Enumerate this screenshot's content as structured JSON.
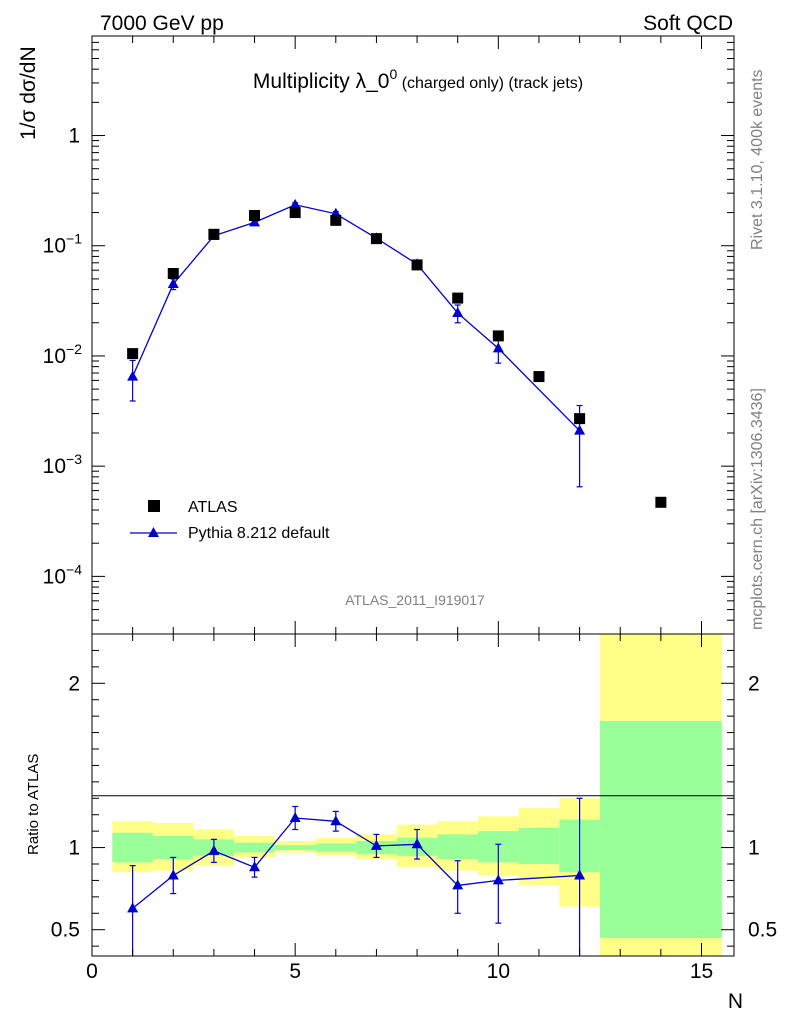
{
  "header": {
    "left": "7000 GeV pp",
    "right": "Soft QCD"
  },
  "side": {
    "rivet": "Rivet 3.1.10,  400k events",
    "site": "mcplots.cern.ch [arXiv:1306.3436]"
  },
  "analysis_id": "ATLAS_2011_I919017",
  "legend": {
    "data_label": "ATLAS",
    "mc_label": "Pythia 8.212 default"
  },
  "chart_data": [
    {
      "panel": "main",
      "type": "scatter",
      "title": "Multiplicity λ_0",
      "title_sup": "0",
      "title_suffix": " (charged only) (track jets)",
      "ylabel": "1/σ dσ/dN",
      "xlabel": "",
      "y_scale": "log",
      "xlim": [
        0,
        15.8
      ],
      "ylim": [
        3e-05,
        8
      ],
      "y_tick_labels": [
        {
          "value": 0.0001,
          "base": "10",
          "exp": "−4"
        },
        {
          "value": 0.001,
          "base": "10",
          "exp": "−3"
        },
        {
          "value": 0.01,
          "base": "10",
          "exp": "−2"
        },
        {
          "value": 0.1,
          "base": "10",
          "exp": "−1"
        },
        {
          "value": 1,
          "base": "1",
          "exp": ""
        }
      ],
      "legend_position": "lower-left",
      "series": [
        {
          "name": "ATLAS",
          "style": "black-squares",
          "color": "#000000",
          "x": [
            1,
            2,
            3,
            4,
            5,
            6,
            7,
            8,
            9,
            10,
            11,
            12,
            14
          ],
          "y": [
            0.0105,
            0.056,
            0.127,
            0.188,
            0.2,
            0.17,
            0.116,
            0.067,
            0.0335,
            0.0152,
            0.0065,
            0.0027,
            0.00047
          ]
        },
        {
          "name": "Pythia 8.212 default",
          "style": "blue-triangles-line",
          "color": "#0000cc",
          "x": [
            1,
            2,
            3,
            4,
            5,
            6,
            7,
            8,
            9,
            10,
            12
          ],
          "y": [
            0.0065,
            0.045,
            0.123,
            0.163,
            0.235,
            0.195,
            0.117,
            0.068,
            0.0245,
            0.0117,
            0.0021
          ],
          "y_err_low": [
            0.0026,
            0.005,
            0.006,
            0.008,
            0.01,
            0.009,
            0.006,
            0.005,
            0.0045,
            0.0031,
            0.00145
          ],
          "y_err_high": [
            0.0026,
            0.005,
            0.006,
            0.008,
            0.01,
            0.009,
            0.006,
            0.005,
            0.0045,
            0.0031,
            0.00145
          ]
        }
      ]
    },
    {
      "panel": "ratio",
      "type": "scatter",
      "ylabel": "Ratio to ATLAS",
      "xlabel": "N",
      "xlim": [
        0,
        15.8
      ],
      "ylim": [
        0.34,
        2.3
      ],
      "x_ticks": [
        0,
        5,
        10,
        15
      ],
      "y_ticks": [
        0.5,
        1,
        2
      ],
      "reference_line": 1,
      "uncertainty_bands": {
        "inner_color": "#99ff99",
        "outer_color": "#ffff88",
        "bins": [
          {
            "x_low": 0.5,
            "x_high": 1.5,
            "inner": [
              0.91,
              1.09
            ],
            "outer": [
              0.85,
              1.16
            ]
          },
          {
            "x_low": 1.5,
            "x_high": 2.5,
            "inner": [
              0.93,
              1.07
            ],
            "outer": [
              0.86,
              1.15
            ]
          },
          {
            "x_low": 2.5,
            "x_high": 3.5,
            "inner": [
              0.95,
              1.05
            ],
            "outer": [
              0.89,
              1.11
            ]
          },
          {
            "x_low": 3.5,
            "x_high": 4.5,
            "inner": [
              0.97,
              1.03
            ],
            "outer": [
              0.94,
              1.07
            ]
          },
          {
            "x_low": 4.5,
            "x_high": 5.5,
            "inner": [
              0.985,
              1.015
            ],
            "outer": [
              0.97,
              1.04
            ]
          },
          {
            "x_low": 5.5,
            "x_high": 6.5,
            "inner": [
              0.975,
              1.025
            ],
            "outer": [
              0.95,
              1.06
            ]
          },
          {
            "x_low": 6.5,
            "x_high": 7.5,
            "inner": [
              0.96,
              1.04
            ],
            "outer": [
              0.93,
              1.08
            ]
          },
          {
            "x_low": 7.5,
            "x_high": 8.5,
            "inner": [
              0.95,
              1.06
            ],
            "outer": [
              0.88,
              1.14
            ]
          },
          {
            "x_low": 8.5,
            "x_high": 9.5,
            "inner": [
              0.93,
              1.08
            ],
            "outer": [
              0.86,
              1.16
            ]
          },
          {
            "x_low": 9.5,
            "x_high": 10.5,
            "inner": [
              0.91,
              1.1
            ],
            "outer": [
              0.83,
              1.19
            ]
          },
          {
            "x_low": 10.5,
            "x_high": 11.5,
            "inner": [
              0.9,
              1.12
            ],
            "outer": [
              0.77,
              1.24
            ]
          },
          {
            "x_low": 11.5,
            "x_high": 12.5,
            "inner": [
              0.85,
              1.17
            ],
            "outer": [
              0.64,
              1.3
            ]
          },
          {
            "x_low": 12.5,
            "x_high": 15.5,
            "inner": [
              0.45,
              1.77
            ],
            "outer": [
              0.34,
              2.3
            ]
          }
        ]
      },
      "series": [
        {
          "name": "Pythia 8.212 default",
          "color": "#0000cc",
          "x": [
            1,
            2,
            3,
            4,
            5,
            6,
            7,
            8,
            9,
            10,
            12
          ],
          "y": [
            0.63,
            0.83,
            0.98,
            0.88,
            1.18,
            1.16,
            1.01,
            1.02,
            0.77,
            0.8,
            0.83
          ],
          "y_err_low": [
            0.3,
            0.11,
            0.07,
            0.06,
            0.07,
            0.06,
            0.07,
            0.09,
            0.17,
            0.26,
            0.55
          ],
          "y_err_high": [
            0.26,
            0.11,
            0.07,
            0.06,
            0.07,
            0.06,
            0.07,
            0.09,
            0.15,
            0.22,
            0.47
          ]
        }
      ]
    }
  ]
}
